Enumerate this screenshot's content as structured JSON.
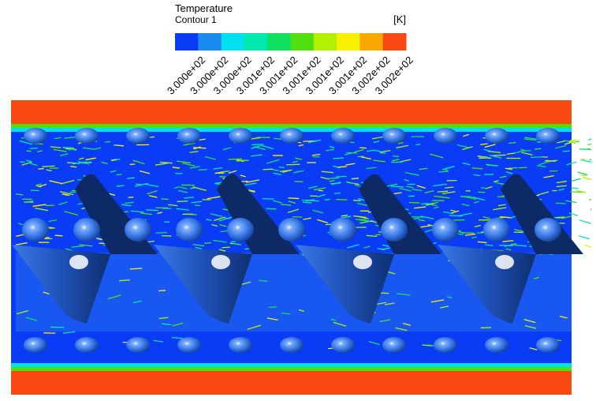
{
  "legend": {
    "title": "Temperature",
    "subtitle": "Contour 1",
    "unit": "[K]",
    "colors": [
      "#0a3cf5",
      "#1a8cf0",
      "#00e0f0",
      "#00e8b0",
      "#10e060",
      "#50e010",
      "#b0f000",
      "#f8f000",
      "#f8a800",
      "#f84a10"
    ],
    "tick_labels": [
      "3.000e+02",
      "3.000e+02",
      "3.000e+02",
      "3.001e+02",
      "3.001e+02",
      "3.001e+02",
      "3.001e+02",
      "3.001e+02",
      "3.002e+02",
      "3.002e+02"
    ]
  }
}
